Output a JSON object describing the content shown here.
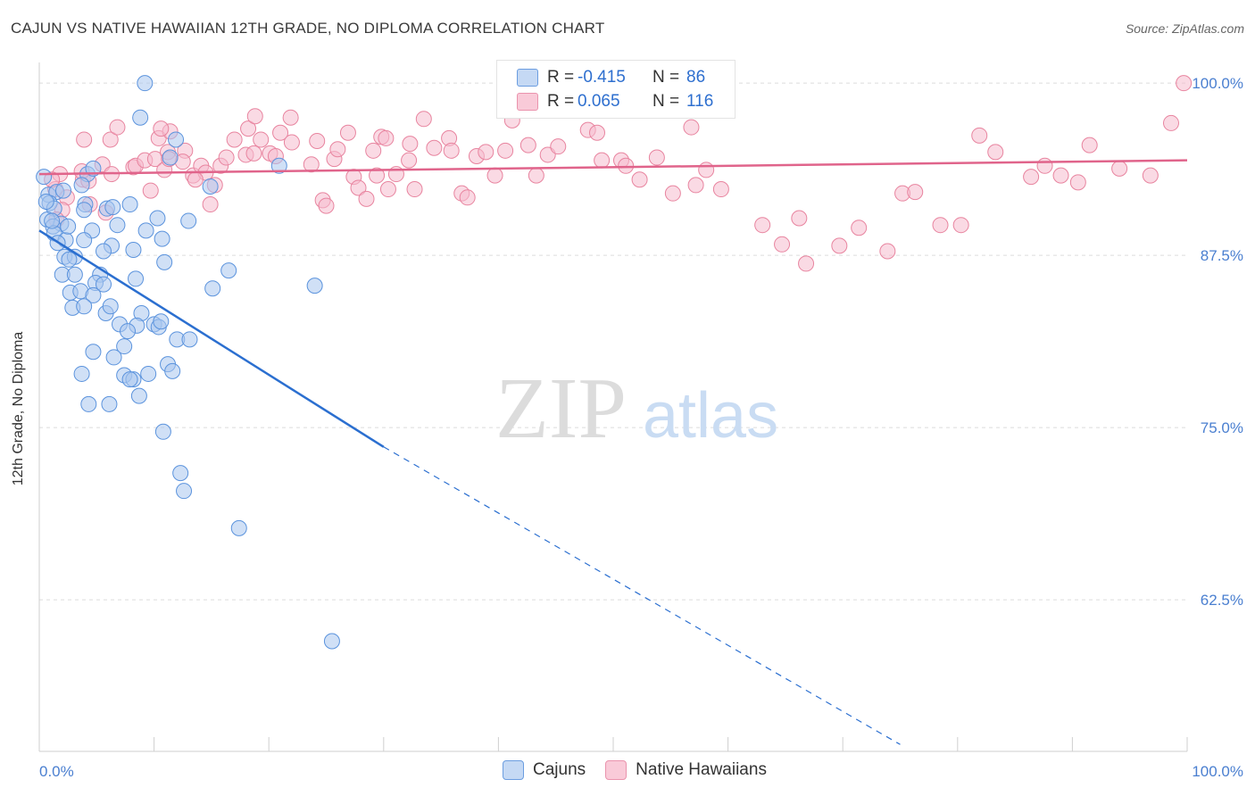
{
  "title": "CAJUN VS NATIVE HAWAIIAN 12TH GRADE, NO DIPLOMA CORRELATION CHART",
  "source": "Source: ZipAtlas.com",
  "watermark": {
    "zip": "ZIP",
    "atlas": "atlas"
  },
  "colors": {
    "cajun_fill": "#a9c6ef",
    "cajun_stroke": "#5b93dd",
    "cajun_line": "#2b6fd0",
    "hawaiian_fill": "#f6bccd",
    "hawaiian_stroke": "#e8849f",
    "hawaiian_line": "#e0648b",
    "tick": "#4a7fd0",
    "grid": "#dcdcdc"
  },
  "legend": {
    "rows": [
      {
        "r_label": "R =",
        "r_value": "-0.415",
        "n_label": "N =",
        "n_value": "86"
      },
      {
        "r_label": "R =",
        "r_value": "0.065",
        "n_label": "N =",
        "n_value": "116"
      }
    ],
    "bottom": [
      "Cajuns",
      "Native Hawaiians"
    ]
  },
  "chart_data": {
    "type": "scatter",
    "title": "CAJUN VS NATIVE HAWAIIAN 12TH GRADE, NO DIPLOMA CORRELATION CHART",
    "xlabel": "",
    "ylabel": "12th Grade, No Diploma",
    "xlim": [
      0,
      100
    ],
    "ylim": [
      51.5,
      101.5
    ],
    "x_tick_labels": [
      "0.0%",
      "100.0%"
    ],
    "y_ticks": [
      {
        "value": 100.0,
        "label": "100.0%"
      },
      {
        "value": 87.5,
        "label": "87.5%"
      },
      {
        "value": 75.0,
        "label": "75.0%"
      },
      {
        "value": 62.5,
        "label": "62.5%"
      }
    ],
    "grid": true,
    "legend_position": "top-center",
    "series": [
      {
        "name": "Cajuns",
        "r": -0.415,
        "n": 86,
        "trend": {
          "solid": [
            [
              0,
              89.3
            ],
            [
              30,
              73.6
            ]
          ],
          "dashed": [
            [
              30,
              73.6
            ],
            [
              75,
              52.0
            ]
          ]
        },
        "points": [
          [
            9.2,
            100.0
          ],
          [
            8.8,
            97.5
          ],
          [
            11.9,
            95.9
          ],
          [
            11.4,
            94.6
          ],
          [
            0.4,
            93.2
          ],
          [
            0.8,
            91.9
          ],
          [
            4.2,
            93.4
          ],
          [
            4.7,
            93.8
          ],
          [
            3.7,
            92.6
          ],
          [
            1.5,
            92.1
          ],
          [
            0.9,
            91.3
          ],
          [
            1.3,
            90.9
          ],
          [
            4.0,
            91.2
          ],
          [
            5.9,
            90.9
          ],
          [
            7.9,
            91.2
          ],
          [
            0.7,
            90.1
          ],
          [
            1.9,
            89.8
          ],
          [
            1.2,
            89.6
          ],
          [
            6.8,
            89.7
          ],
          [
            10.3,
            90.2
          ],
          [
            4.6,
            89.3
          ],
          [
            1.3,
            89.1
          ],
          [
            2.3,
            88.6
          ],
          [
            3.9,
            88.6
          ],
          [
            6.3,
            88.2
          ],
          [
            5.6,
            87.8
          ],
          [
            8.2,
            87.9
          ],
          [
            10.7,
            88.7
          ],
          [
            2.2,
            87.4
          ],
          [
            3.1,
            87.4
          ],
          [
            2.6,
            87.2
          ],
          [
            10.9,
            87.0
          ],
          [
            2.0,
            86.1
          ],
          [
            5.3,
            86.1
          ],
          [
            3.1,
            86.1
          ],
          [
            4.9,
            85.5
          ],
          [
            5.6,
            85.4
          ],
          [
            8.4,
            85.8
          ],
          [
            16.5,
            86.4
          ],
          [
            15.1,
            85.1
          ],
          [
            24.0,
            85.3
          ],
          [
            2.7,
            84.8
          ],
          [
            3.6,
            84.9
          ],
          [
            4.7,
            84.6
          ],
          [
            2.9,
            83.7
          ],
          [
            3.9,
            83.8
          ],
          [
            5.8,
            83.3
          ],
          [
            8.9,
            83.3
          ],
          [
            6.2,
            83.8
          ],
          [
            7.0,
            82.5
          ],
          [
            8.5,
            82.4
          ],
          [
            10.0,
            82.5
          ],
          [
            10.4,
            82.3
          ],
          [
            7.7,
            82.0
          ],
          [
            10.6,
            82.7
          ],
          [
            12.0,
            81.4
          ],
          [
            13.1,
            81.4
          ],
          [
            7.4,
            80.9
          ],
          [
            4.7,
            80.5
          ],
          [
            6.5,
            80.1
          ],
          [
            11.2,
            79.6
          ],
          [
            11.6,
            79.1
          ],
          [
            3.7,
            78.9
          ],
          [
            7.4,
            78.8
          ],
          [
            9.5,
            78.9
          ],
          [
            8.2,
            78.5
          ],
          [
            7.9,
            78.5
          ],
          [
            8.7,
            77.3
          ],
          [
            4.3,
            76.7
          ],
          [
            6.1,
            76.7
          ],
          [
            10.8,
            74.7
          ],
          [
            12.3,
            71.7
          ],
          [
            12.6,
            70.4
          ],
          [
            17.4,
            67.7
          ],
          [
            25.5,
            59.5
          ],
          [
            20.9,
            94.0
          ],
          [
            14.9,
            92.5
          ],
          [
            3.9,
            90.8
          ],
          [
            2.1,
            92.2
          ],
          [
            1.1,
            90.0
          ],
          [
            0.6,
            91.4
          ],
          [
            1.6,
            88.4
          ],
          [
            6.4,
            91.0
          ],
          [
            9.3,
            89.3
          ],
          [
            13.0,
            90.0
          ],
          [
            2.5,
            89.6
          ]
        ]
      },
      {
        "name": "Native Hawaiians",
        "r": 0.065,
        "n": 116,
        "trend": {
          "solid": [
            [
              0,
              93.4
            ],
            [
              100,
              94.4
            ]
          ]
        },
        "points": [
          [
            1.4,
            92.3
          ],
          [
            1.8,
            93.4
          ],
          [
            1.1,
            93.0
          ],
          [
            2.4,
            91.7
          ],
          [
            3.8,
            93.0
          ],
          [
            2.0,
            90.8
          ],
          [
            1.5,
            90.1
          ],
          [
            4.3,
            92.9
          ],
          [
            3.7,
            93.6
          ],
          [
            4.4,
            91.2
          ],
          [
            3.9,
            95.9
          ],
          [
            5.5,
            94.1
          ],
          [
            5.8,
            90.6
          ],
          [
            6.2,
            95.9
          ],
          [
            6.8,
            96.8
          ],
          [
            8.2,
            93.9
          ],
          [
            8.4,
            94.0
          ],
          [
            9.2,
            94.4
          ],
          [
            10.1,
            94.5
          ],
          [
            10.4,
            96.0
          ],
          [
            10.9,
            93.7
          ],
          [
            11.2,
            95.0
          ],
          [
            11.4,
            96.5
          ],
          [
            10.6,
            96.7
          ],
          [
            12.7,
            95.1
          ],
          [
            12.5,
            94.3
          ],
          [
            13.4,
            93.3
          ],
          [
            14.1,
            94.0
          ],
          [
            14.5,
            93.5
          ],
          [
            14.9,
            91.2
          ],
          [
            15.3,
            92.6
          ],
          [
            15.8,
            94.0
          ],
          [
            16.3,
            94.6
          ],
          [
            17.0,
            95.9
          ],
          [
            18.0,
            94.8
          ],
          [
            18.7,
            94.9
          ],
          [
            18.2,
            96.7
          ],
          [
            19.3,
            95.9
          ],
          [
            18.8,
            97.6
          ],
          [
            20.1,
            94.9
          ],
          [
            20.6,
            94.7
          ],
          [
            21.0,
            96.4
          ],
          [
            21.9,
            97.5
          ],
          [
            22.0,
            95.7
          ],
          [
            23.7,
            94.1
          ],
          [
            24.2,
            95.8
          ],
          [
            24.7,
            91.5
          ],
          [
            25.0,
            91.1
          ],
          [
            25.7,
            94.5
          ],
          [
            26.0,
            95.2
          ],
          [
            26.9,
            96.4
          ],
          [
            27.4,
            93.2
          ],
          [
            27.8,
            92.4
          ],
          [
            28.5,
            91.6
          ],
          [
            29.1,
            95.1
          ],
          [
            29.4,
            93.3
          ],
          [
            29.8,
            96.1
          ],
          [
            30.2,
            96.0
          ],
          [
            30.4,
            92.3
          ],
          [
            31.1,
            93.4
          ],
          [
            32.2,
            94.4
          ],
          [
            32.3,
            95.6
          ],
          [
            32.7,
            92.3
          ],
          [
            33.5,
            97.4
          ],
          [
            34.4,
            95.3
          ],
          [
            35.7,
            96.0
          ],
          [
            35.9,
            95.1
          ],
          [
            36.8,
            92.0
          ],
          [
            37.3,
            91.7
          ],
          [
            38.1,
            94.7
          ],
          [
            38.9,
            95.0
          ],
          [
            39.7,
            93.3
          ],
          [
            40.6,
            95.1
          ],
          [
            41.2,
            97.3
          ],
          [
            42.6,
            95.5
          ],
          [
            43.3,
            93.3
          ],
          [
            44.3,
            94.8
          ],
          [
            45.2,
            95.4
          ],
          [
            47.8,
            96.6
          ],
          [
            48.6,
            96.4
          ],
          [
            49.0,
            94.4
          ],
          [
            50.7,
            94.4
          ],
          [
            51.1,
            94.0
          ],
          [
            52.3,
            93.0
          ],
          [
            53.8,
            94.6
          ],
          [
            55.2,
            92.0
          ],
          [
            56.8,
            96.8
          ],
          [
            57.2,
            92.6
          ],
          [
            58.1,
            93.7
          ],
          [
            59.4,
            92.3
          ],
          [
            63.0,
            89.7
          ],
          [
            64.7,
            88.3
          ],
          [
            66.2,
            90.2
          ],
          [
            66.8,
            86.9
          ],
          [
            69.7,
            88.2
          ],
          [
            71.4,
            89.5
          ],
          [
            73.9,
            87.8
          ],
          [
            75.2,
            92.0
          ],
          [
            76.3,
            92.1
          ],
          [
            78.5,
            89.7
          ],
          [
            80.3,
            89.7
          ],
          [
            81.9,
            96.2
          ],
          [
            83.3,
            95.0
          ],
          [
            86.4,
            93.2
          ],
          [
            87.6,
            94.0
          ],
          [
            89.0,
            93.3
          ],
          [
            90.5,
            92.8
          ],
          [
            91.5,
            95.5
          ],
          [
            94.1,
            93.8
          ],
          [
            96.8,
            93.3
          ],
          [
            98.6,
            97.1
          ],
          [
            99.7,
            100.0
          ],
          [
            6.3,
            93.4
          ],
          [
            9.7,
            92.2
          ],
          [
            11.3,
            94.5
          ],
          [
            13.6,
            93.0
          ]
        ]
      }
    ]
  }
}
